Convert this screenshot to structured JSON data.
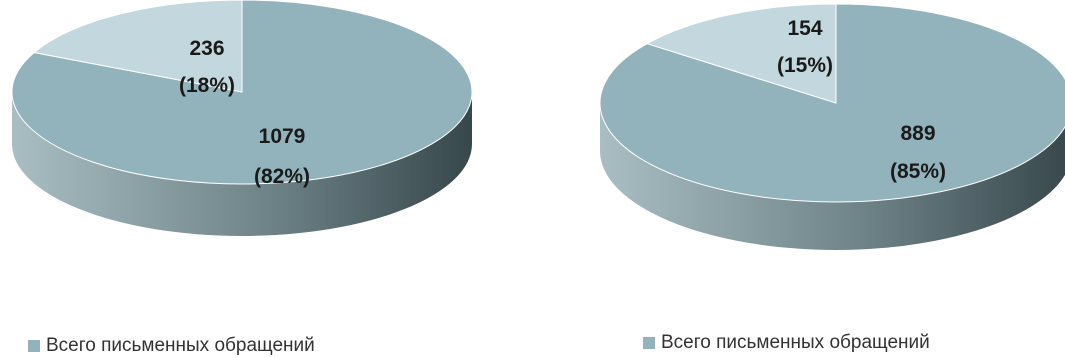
{
  "colors": {
    "slice_main": "#93b3bc",
    "slice_minor": "#c3d8de",
    "side_light": "#98adb2",
    "side_dark": "#3a4a4e",
    "label": "#1a1a1a",
    "legend_swatch": "#93b3bc"
  },
  "chart_data": [
    {
      "type": "pie",
      "style": "3d",
      "slices": [
        {
          "value": 1079,
          "percent": 82,
          "label_value": "1079",
          "label_percent": "(82%)"
        },
        {
          "value": 236,
          "percent": 18,
          "label_value": "236",
          "label_percent": "(18%)"
        }
      ],
      "legend": {
        "placement": "bottom",
        "entries": [
          "Всего письменных обращений"
        ]
      }
    },
    {
      "type": "pie",
      "style": "3d",
      "slices": [
        {
          "value": 889,
          "percent": 85,
          "label_value": "889",
          "label_percent": "(85%)"
        },
        {
          "value": 154,
          "percent": 15,
          "label_value": "154",
          "label_percent": "(15%)"
        }
      ],
      "legend": {
        "placement": "bottom",
        "entries": [
          "Всего письменных обращений"
        ]
      }
    }
  ]
}
